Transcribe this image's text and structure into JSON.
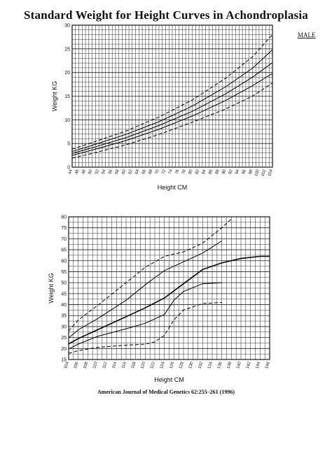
{
  "page_title": "Standard Weight for Height Curves in  Achondroplasia",
  "sex_label": "MALE",
  "citation": "American Journal of Medical Genetics 62:255–261 (1996)",
  "chart_data": [
    {
      "type": "line",
      "xlabel": "Height CM",
      "ylabel": "Weight KG",
      "xlim": [
        44,
        104
      ],
      "ylim": [
        0,
        30
      ],
      "x_ticks": [
        44,
        46,
        48,
        50,
        52,
        54,
        56,
        58,
        60,
        62,
        64,
        66,
        68,
        70,
        72,
        74,
        76,
        78,
        80,
        82,
        84,
        86,
        88,
        90,
        92,
        94,
        96,
        98,
        100,
        102,
        104
      ],
      "y_ticks": [
        0,
        5,
        10,
        15,
        20,
        25,
        30
      ],
      "grid": true,
      "series": [
        {
          "style": "dashed",
          "x": [
            44,
            50,
            60,
            70,
            80,
            90,
            98,
            104
          ],
          "y": [
            3.8,
            5.2,
            7.6,
            10.6,
            14.2,
            18.8,
            23.3,
            28.0
          ]
        },
        {
          "style": "solid",
          "x": [
            44,
            50,
            60,
            70,
            80,
            90,
            98,
            104
          ],
          "y": [
            3.3,
            4.6,
            6.9,
            9.6,
            12.9,
            17.0,
            20.9,
            24.8
          ]
        },
        {
          "style": "solid",
          "x": [
            44,
            50,
            60,
            70,
            80,
            90,
            98,
            104
          ],
          "y": [
            2.9,
            4.1,
            6.2,
            8.8,
            11.8,
            15.5,
            19.0,
            22.1
          ]
        },
        {
          "style": "solid",
          "x": [
            44,
            50,
            60,
            70,
            80,
            90,
            98,
            104
          ],
          "y": [
            2.5,
            3.6,
            5.6,
            8.0,
            10.8,
            14.1,
            17.2,
            19.8
          ]
        },
        {
          "style": "dashed",
          "x": [
            44,
            50,
            60,
            70,
            80,
            90,
            98,
            104
          ],
          "y": [
            1.9,
            2.9,
            4.7,
            6.9,
            9.5,
            12.3,
            15.0,
            17.8
          ]
        }
      ]
    },
    {
      "type": "line",
      "xlabel": "Height CM",
      "ylabel": "Weight KG",
      "xlim": [
        104,
        146
      ],
      "ylim": [
        15,
        80
      ],
      "x_ticks": [
        104,
        106,
        108,
        110,
        112,
        114,
        116,
        118,
        120,
        122,
        124,
        126,
        128,
        130,
        132,
        134,
        136,
        138,
        140,
        142,
        144,
        146
      ],
      "y_ticks": [
        15,
        20,
        25,
        30,
        35,
        40,
        45,
        50,
        55,
        60,
        65,
        70,
        75,
        80
      ],
      "grid": true,
      "series": [
        {
          "style": "dashed",
          "x": [
            104,
            106,
            110,
            116,
            120,
            124,
            128,
            132,
            136,
            138
          ],
          "y": [
            28.0,
            33.0,
            39.5,
            50.0,
            57.0,
            62.0,
            64.0,
            68.0,
            75.0,
            79.0
          ]
        },
        {
          "style": "solid",
          "x": [
            104,
            106,
            110,
            116,
            120,
            124,
            128,
            132,
            136
          ],
          "y": [
            24.8,
            28.5,
            33.5,
            42.0,
            49.0,
            55.5,
            59.5,
            63.5,
            69.0
          ]
        },
        {
          "style": "solid-bold",
          "x": [
            104,
            106,
            110,
            116,
            120,
            124,
            128,
            132,
            136,
            140,
            144,
            146
          ],
          "y": [
            22.1,
            24.5,
            28.5,
            34.5,
            38.5,
            43.0,
            49.5,
            56.0,
            59.0,
            61.0,
            62.0,
            62.0
          ]
        },
        {
          "style": "solid",
          "x": [
            104,
            106,
            110,
            116,
            120,
            124,
            126,
            128,
            132,
            136
          ],
          "y": [
            19.8,
            22.0,
            25.5,
            29.0,
            31.5,
            35.5,
            42.0,
            46.0,
            49.5,
            50.0
          ]
        },
        {
          "style": "dashed",
          "x": [
            104,
            106,
            110,
            116,
            120,
            122,
            124,
            126,
            128,
            132,
            136
          ],
          "y": [
            17.8,
            19.0,
            20.5,
            21.5,
            22.0,
            23.0,
            26.0,
            33.0,
            37.5,
            40.5,
            41.0
          ]
        }
      ]
    }
  ]
}
